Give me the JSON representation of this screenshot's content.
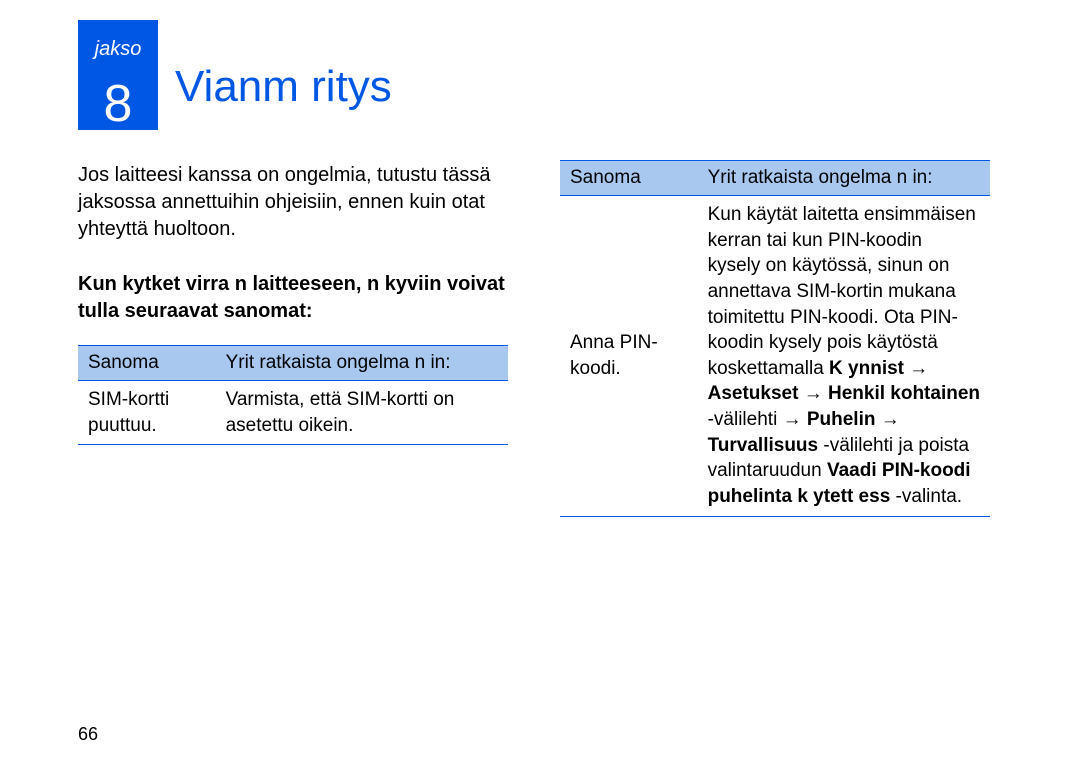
{
  "chapter": {
    "label": "jakso",
    "number": "8",
    "title": "Vianm  ritys"
  },
  "intro_text": "Jos laitteesi kanssa on ongelmia, tutustu tässä jaksossa annettuihin ohjeisiin, ennen kuin otat yhteyttä huoltoon.",
  "subhead_text": "Kun kytket virra       n laitteeseen, n kyviin voivat tulla seuraavat sanomat:",
  "table_left": {
    "header1": "Sanoma",
    "header2": "Yrit  ratkaista ongelma n in:",
    "row1_col1": "SIM-kortti puuttuu.",
    "row1_col2": "Varmista, että SIM-kortti on asetettu oikein."
  },
  "table_right": {
    "header1": "Sanoma",
    "header2": "Yrit  ratkaista ongelma n in:",
    "row1_col1": "Anna PIN-koodi.",
    "row1_col2_html": "Kun käytät laitetta ensimmäisen kerran tai kun PIN-koodin kysely on käytössä, sinun on annettava SIM-kortin mukana toimitettu PIN-koodi. Ota PIN-koodin kysely pois käytöstä koskettamalla <b>K ynnist</b> → <b>Asetukset</b> → <b>Henkil kohtainen</b> -välilehti → <b>Puhelin</b> → <b>Turvallisuus</b> -välilehti ja poista valintaruudun <b>Vaadi PIN-koodi puhelinta k ytett ess</b> -valinta."
  },
  "page_number": "66",
  "colors": {
    "brand_blue": "#0057e3",
    "header_bg": "#a9c8f0",
    "text": "#000000",
    "bg": "#ffffff"
  }
}
